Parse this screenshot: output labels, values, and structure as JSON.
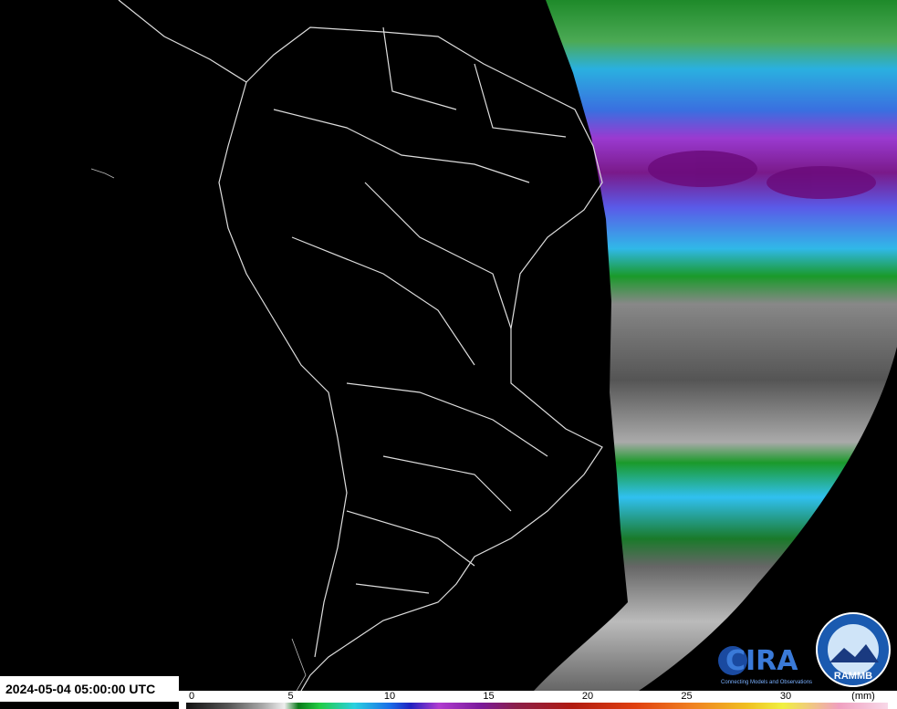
{
  "timestamp": "2024-05-04 05:00:00 UTC",
  "colorbar": {
    "ticks": [
      0,
      5,
      10,
      15,
      20,
      25,
      30
    ],
    "unit": "(mm)"
  },
  "logos": {
    "cira": {
      "name": "CIRA",
      "tagline": "Connecting Models and Observations"
    },
    "rammb": {
      "name": "RAMMB"
    }
  }
}
